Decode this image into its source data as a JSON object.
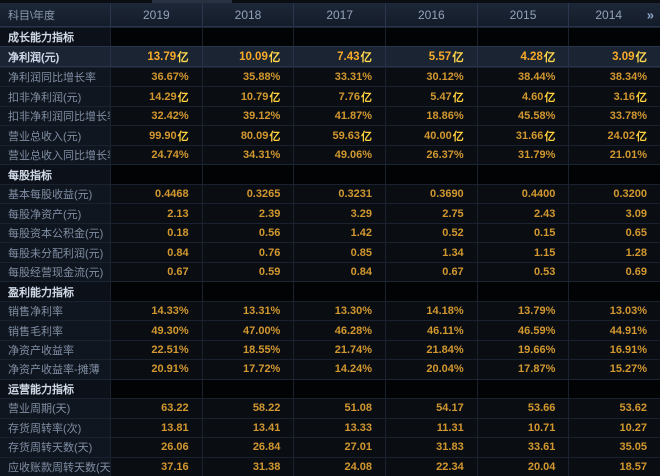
{
  "table": {
    "corner_label": "科目\\年度",
    "years": [
      "2019",
      "2018",
      "2017",
      "2016",
      "2015",
      "2014"
    ],
    "more_years_icon": "»",
    "unit_suffix": "亿",
    "sections": [
      {
        "title": "成长能力指标",
        "rows": [
          {
            "label": "净利润(元)",
            "highlight": true,
            "values": [
              "13.79亿",
              "10.09亿",
              "7.43亿",
              "5.57亿",
              "4.28亿",
              "3.09亿"
            ]
          },
          {
            "label": "净利润同比增长率",
            "values": [
              "36.67%",
              "35.88%",
              "33.31%",
              "30.12%",
              "38.44%",
              "38.34%"
            ]
          },
          {
            "label": "扣非净利润(元)",
            "values": [
              "14.29亿",
              "10.79亿",
              "7.76亿",
              "5.47亿",
              "4.60亿",
              "3.16亿"
            ]
          },
          {
            "label": "扣非净利润同比增长率",
            "values": [
              "32.42%",
              "39.12%",
              "41.87%",
              "18.86%",
              "45.58%",
              "33.78%"
            ]
          },
          {
            "label": "营业总收入(元)",
            "values": [
              "99.90亿",
              "80.09亿",
              "59.63亿",
              "40.00亿",
              "31.66亿",
              "24.02亿"
            ]
          },
          {
            "label": "营业总收入同比增长率",
            "values": [
              "24.74%",
              "34.31%",
              "49.06%",
              "26.37%",
              "31.79%",
              "21.01%"
            ]
          }
        ]
      },
      {
        "title": "每股指标",
        "rows": [
          {
            "label": "基本每股收益(元)",
            "values": [
              "0.4468",
              "0.3265",
              "0.3231",
              "0.3690",
              "0.4400",
              "0.3200"
            ]
          },
          {
            "label": "每股净资产(元)",
            "values": [
              "2.13",
              "2.39",
              "3.29",
              "2.75",
              "2.43",
              "3.09"
            ]
          },
          {
            "label": "每股资本公积金(元)",
            "values": [
              "0.18",
              "0.56",
              "1.42",
              "0.52",
              "0.15",
              "0.65"
            ]
          },
          {
            "label": "每股未分配利润(元)",
            "values": [
              "0.84",
              "0.76",
              "0.85",
              "1.34",
              "1.15",
              "1.28"
            ]
          },
          {
            "label": "每股经营现金流(元)",
            "values": [
              "0.67",
              "0.59",
              "0.84",
              "0.67",
              "0.53",
              "0.69"
            ]
          }
        ]
      },
      {
        "title": "盈利能力指标",
        "rows": [
          {
            "label": "销售净利率",
            "values": [
              "14.33%",
              "13.31%",
              "13.30%",
              "14.18%",
              "13.79%",
              "13.03%"
            ]
          },
          {
            "label": "销售毛利率",
            "values": [
              "49.30%",
              "47.00%",
              "46.28%",
              "46.11%",
              "46.59%",
              "44.91%"
            ]
          },
          {
            "label": "净资产收益率",
            "values": [
              "22.51%",
              "18.55%",
              "21.74%",
              "21.84%",
              "19.66%",
              "16.91%"
            ]
          },
          {
            "label": "净资产收益率-摊薄",
            "values": [
              "20.91%",
              "17.72%",
              "14.24%",
              "20.04%",
              "17.87%",
              "15.27%"
            ]
          }
        ]
      },
      {
        "title": "运营能力指标",
        "rows": [
          {
            "label": "营业周期(天)",
            "values": [
              "63.22",
              "58.22",
              "51.08",
              "54.17",
              "53.66",
              "53.62"
            ]
          },
          {
            "label": "存货周转率(次)",
            "values": [
              "13.81",
              "13.41",
              "13.33",
              "11.31",
              "10.71",
              "10.27"
            ]
          },
          {
            "label": "存货周转天数(天)",
            "values": [
              "26.06",
              "26.84",
              "27.01",
              "31.83",
              "33.61",
              "35.05"
            ]
          },
          {
            "label": "应收账款周转天数(天)",
            "values": [
              "37.16",
              "31.38",
              "24.08",
              "22.34",
              "20.04",
              "18.57"
            ]
          }
        ]
      }
    ],
    "colors": {
      "background": "#0b1018",
      "header_bg": "#19222f",
      "header_text": "#93a2ba",
      "label_text": "#7f8da3",
      "section_text": "#cfd8e6",
      "value_orange": "#d2972f",
      "value_highlight_orange": "#f8ab29",
      "unit_yellow": "#ffd23e",
      "highlight_row_bg": "#1b2433"
    }
  }
}
